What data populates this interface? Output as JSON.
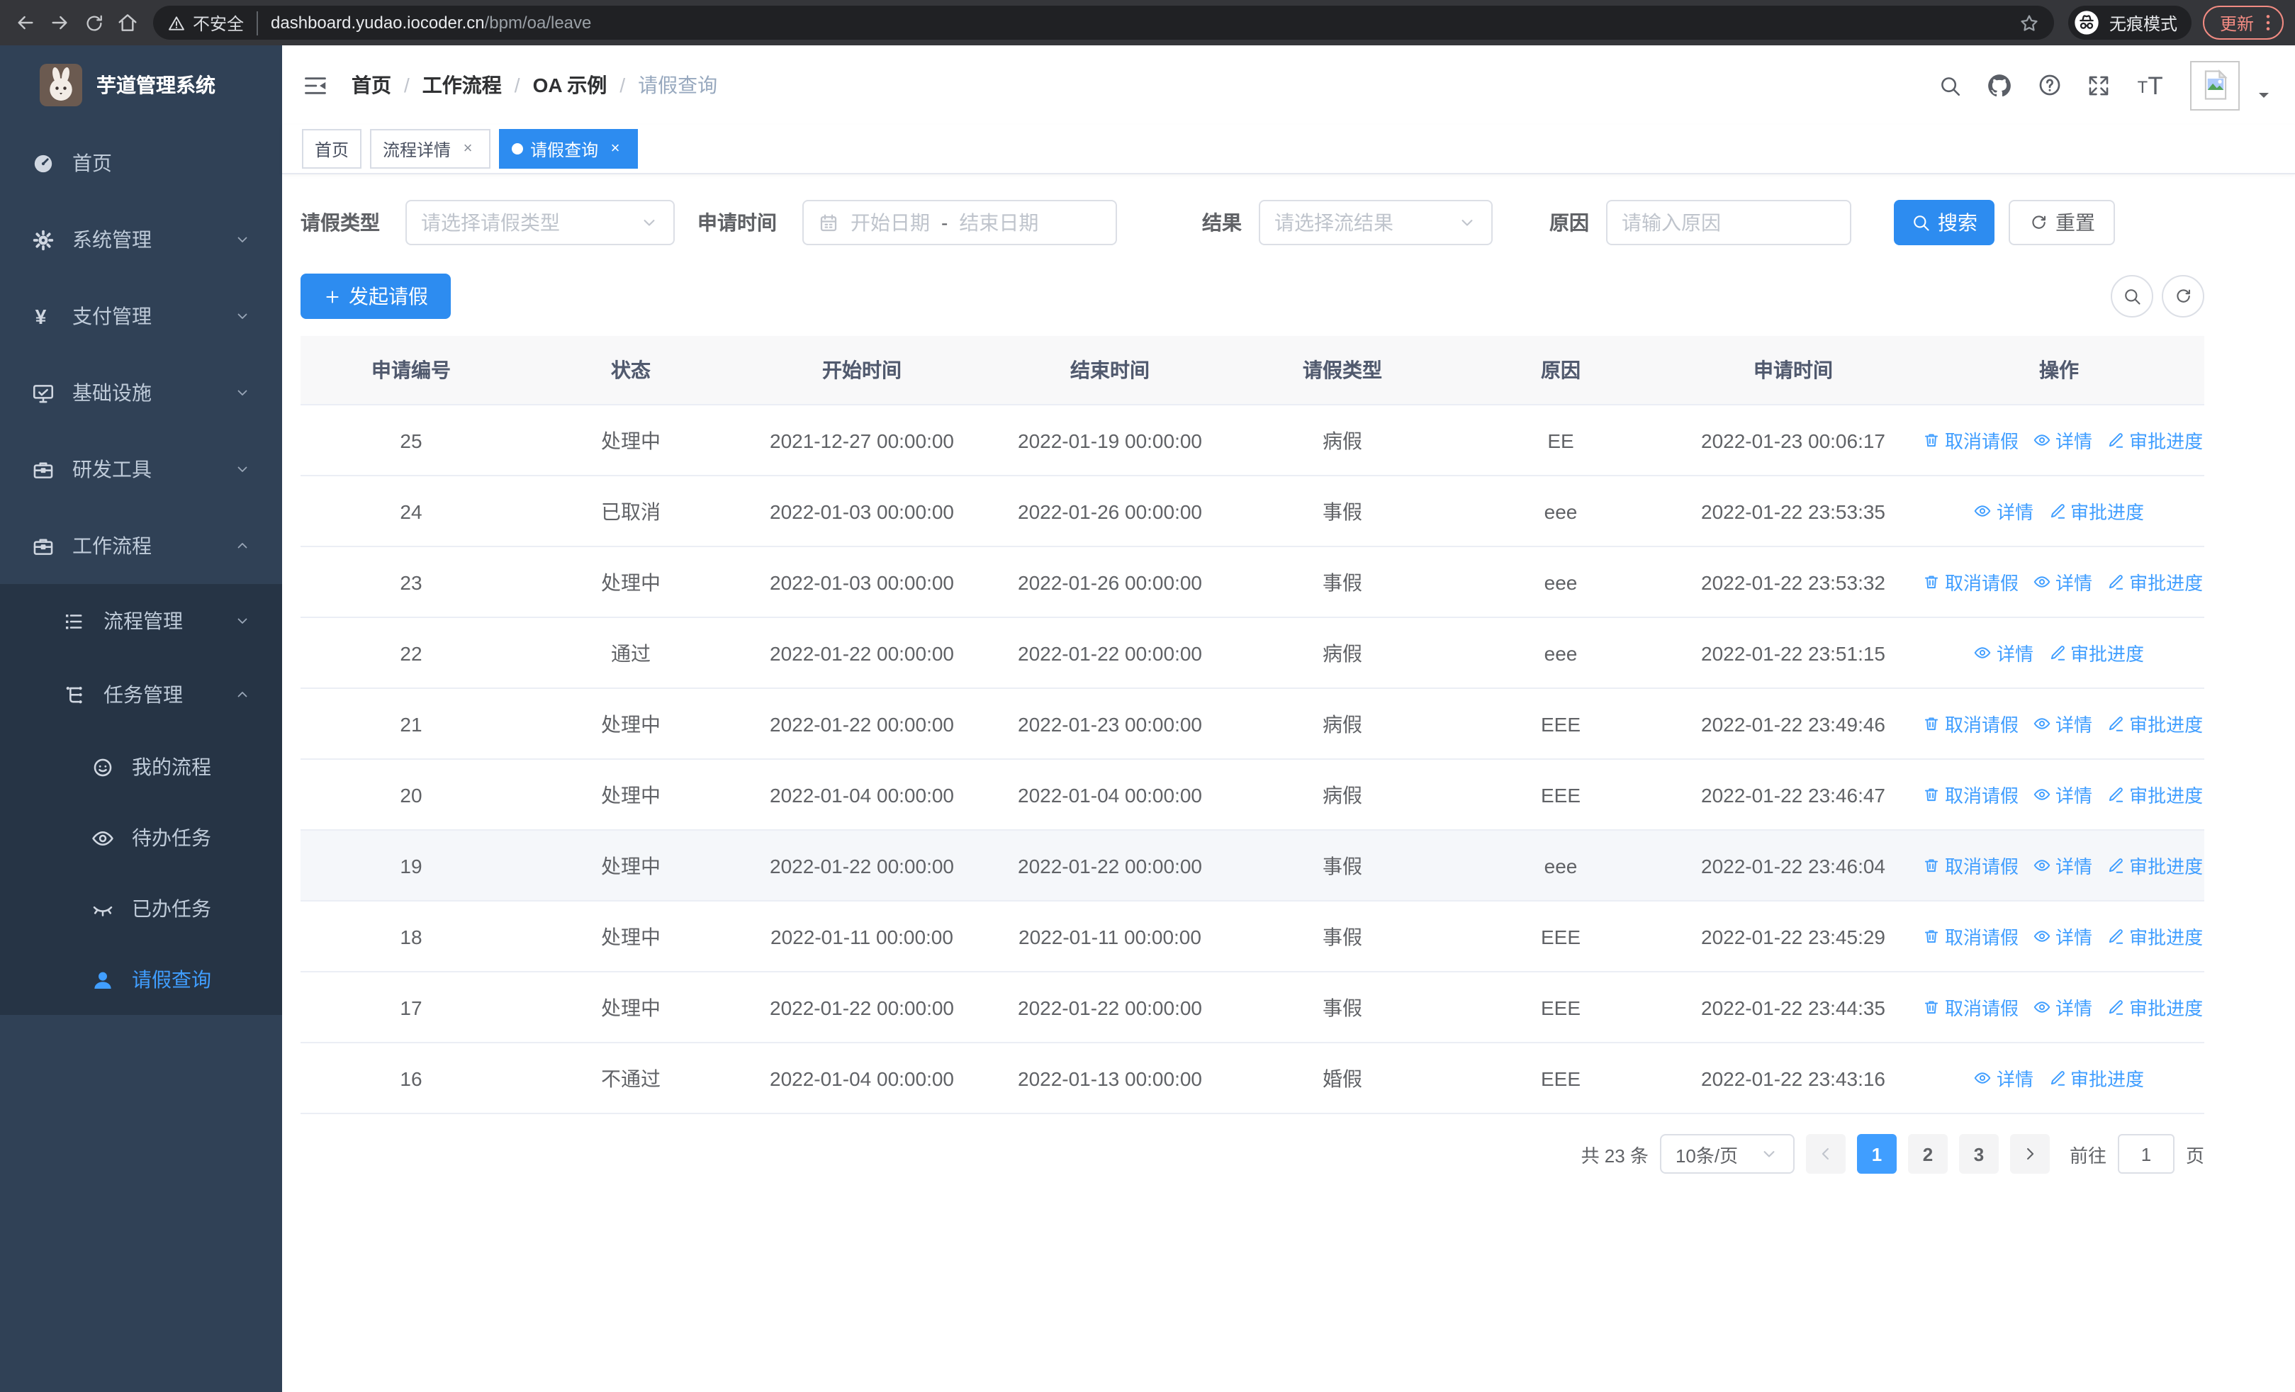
{
  "browser": {
    "security_warning": "不安全",
    "url_host": "dashboard.yudao.iocoder.cn",
    "url_path": "/bpm/oa/leave",
    "incognito_label": "无痕模式",
    "update_label": "更新"
  },
  "sidebar": {
    "app_title": "芋道管理系统",
    "items": [
      {
        "key": "home",
        "label": "首页",
        "icon": "dashboard"
      },
      {
        "key": "system",
        "label": "系统管理",
        "icon": "gear",
        "expandable": true
      },
      {
        "key": "payment",
        "label": "支付管理",
        "icon": "yen",
        "expandable": true
      },
      {
        "key": "infra",
        "label": "基础设施",
        "icon": "monitor",
        "expandable": true
      },
      {
        "key": "devtools",
        "label": "研发工具",
        "icon": "briefcase",
        "expandable": true
      },
      {
        "key": "workflow",
        "label": "工作流程",
        "icon": "briefcase",
        "expandable": true,
        "expanded": true,
        "children": [
          {
            "key": "process-mgmt",
            "label": "流程管理",
            "icon": "list",
            "expandable": true
          },
          {
            "key": "task-mgmt",
            "label": "任务管理",
            "icon": "tree",
            "expandable": true,
            "expanded": true,
            "children": [
              {
                "key": "my-process",
                "label": "我的流程",
                "icon": "robot"
              },
              {
                "key": "todo-tasks",
                "label": "待办任务",
                "icon": "eye"
              },
              {
                "key": "done-tasks",
                "label": "已办任务",
                "icon": "eye-closed"
              },
              {
                "key": "leave-query",
                "label": "请假查询",
                "icon": "user",
                "active": true
              }
            ]
          }
        ]
      }
    ]
  },
  "header": {
    "breadcrumb": [
      "首页",
      "工作流程",
      "OA 示例",
      "请假查询"
    ]
  },
  "tabs": [
    {
      "label": "首页",
      "closable": false,
      "active": false
    },
    {
      "label": "流程详情",
      "closable": true,
      "active": false
    },
    {
      "label": "请假查询",
      "closable": true,
      "active": true
    }
  ],
  "filters": {
    "leave_type_label": "请假类型",
    "leave_type_placeholder": "请选择请假类型",
    "apply_time_label": "申请时间",
    "start_date_placeholder": "开始日期",
    "date_separator": "-",
    "end_date_placeholder": "结束日期",
    "result_label": "结果",
    "result_placeholder": "请选择流结果",
    "reason_label": "原因",
    "reason_placeholder": "请输入原因",
    "search_label": "搜索",
    "reset_label": "重置"
  },
  "toolbar": {
    "create_label": "发起请假"
  },
  "table": {
    "columns": [
      "申请编号",
      "状态",
      "开始时间",
      "结束时间",
      "请假类型",
      "原因",
      "申请时间",
      "操作"
    ],
    "action_labels": {
      "cancel": "取消请假",
      "detail": "详情",
      "progress": "审批进度"
    },
    "rows": [
      {
        "id": "25",
        "status": "处理中",
        "start": "2021-12-27 00:00:00",
        "end": "2022-01-19 00:00:00",
        "type": "病假",
        "reason": "EE",
        "applied": "2022-01-23 00:06:17",
        "actions": [
          "cancel",
          "detail",
          "progress"
        ],
        "highlight": false
      },
      {
        "id": "24",
        "status": "已取消",
        "start": "2022-01-03 00:00:00",
        "end": "2022-01-26 00:00:00",
        "type": "事假",
        "reason": "eee",
        "applied": "2022-01-22 23:53:35",
        "actions": [
          "detail",
          "progress"
        ],
        "highlight": false
      },
      {
        "id": "23",
        "status": "处理中",
        "start": "2022-01-03 00:00:00",
        "end": "2022-01-26 00:00:00",
        "type": "事假",
        "reason": "eee",
        "applied": "2022-01-22 23:53:32",
        "actions": [
          "cancel",
          "detail",
          "progress"
        ],
        "highlight": false
      },
      {
        "id": "22",
        "status": "通过",
        "start": "2022-01-22 00:00:00",
        "end": "2022-01-22 00:00:00",
        "type": "病假",
        "reason": "eee",
        "applied": "2022-01-22 23:51:15",
        "actions": [
          "detail",
          "progress"
        ],
        "highlight": false
      },
      {
        "id": "21",
        "status": "处理中",
        "start": "2022-01-22 00:00:00",
        "end": "2022-01-23 00:00:00",
        "type": "病假",
        "reason": "EEE",
        "applied": "2022-01-22 23:49:46",
        "actions": [
          "cancel",
          "detail",
          "progress"
        ],
        "highlight": false
      },
      {
        "id": "20",
        "status": "处理中",
        "start": "2022-01-04 00:00:00",
        "end": "2022-01-04 00:00:00",
        "type": "病假",
        "reason": "EEE",
        "applied": "2022-01-22 23:46:47",
        "actions": [
          "cancel",
          "detail",
          "progress"
        ],
        "highlight": false
      },
      {
        "id": "19",
        "status": "处理中",
        "start": "2022-01-22 00:00:00",
        "end": "2022-01-22 00:00:00",
        "type": "事假",
        "reason": "eee",
        "applied": "2022-01-22 23:46:04",
        "actions": [
          "cancel",
          "detail",
          "progress"
        ],
        "highlight": true
      },
      {
        "id": "18",
        "status": "处理中",
        "start": "2022-01-11 00:00:00",
        "end": "2022-01-11 00:00:00",
        "type": "事假",
        "reason": "EEE",
        "applied": "2022-01-22 23:45:29",
        "actions": [
          "cancel",
          "detail",
          "progress"
        ],
        "highlight": false
      },
      {
        "id": "17",
        "status": "处理中",
        "start": "2022-01-22 00:00:00",
        "end": "2022-01-22 00:00:00",
        "type": "事假",
        "reason": "EEE",
        "applied": "2022-01-22 23:44:35",
        "actions": [
          "cancel",
          "detail",
          "progress"
        ],
        "highlight": false
      },
      {
        "id": "16",
        "status": "不通过",
        "start": "2022-01-04 00:00:00",
        "end": "2022-01-13 00:00:00",
        "type": "婚假",
        "reason": "EEE",
        "applied": "2022-01-22 23:43:16",
        "actions": [
          "detail",
          "progress"
        ],
        "highlight": false
      }
    ]
  },
  "pagination": {
    "total_label": "共 23 条",
    "page_size_label": "10条/页",
    "pages": [
      "1",
      "2",
      "3"
    ],
    "current_page": "1",
    "goto_prefix": "前往",
    "goto_value": "1",
    "goto_suffix": "页"
  },
  "colors": {
    "primary_solid": "#2d8cf0",
    "link_blue": "#409eff",
    "sidebar_bg": "#304156",
    "submenu_bg": "#263445",
    "chrome_bg": "#35363a",
    "coral": "#f28b82"
  }
}
